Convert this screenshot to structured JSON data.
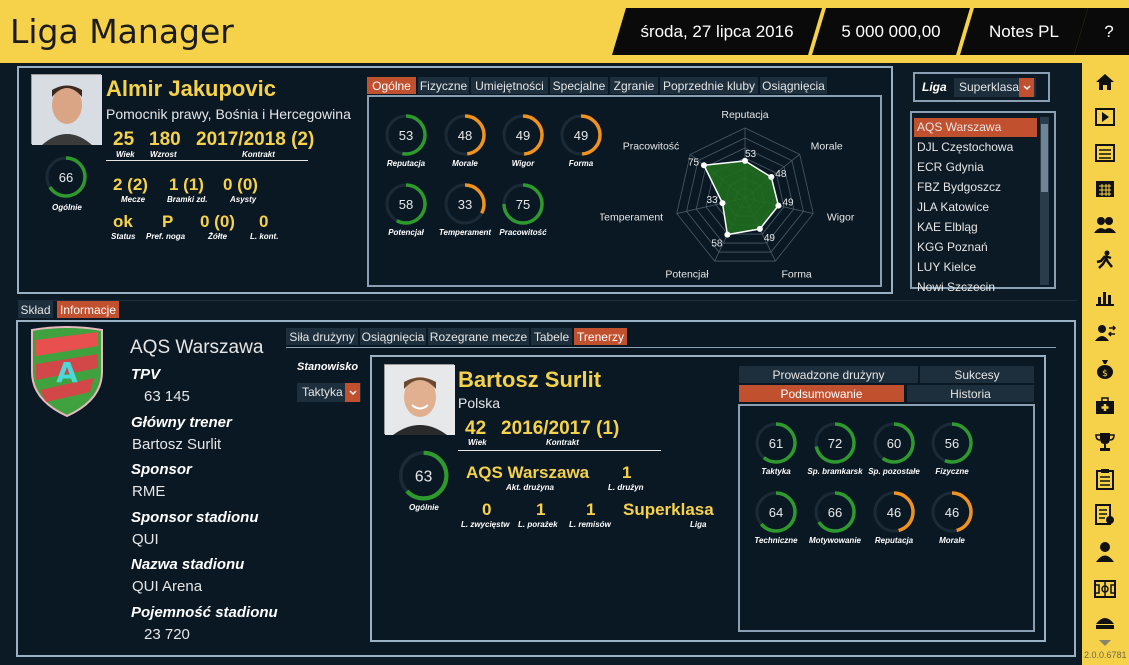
{
  "header": {
    "title": "Liga Manager",
    "date": "środa, 27 lipca 2016",
    "money": "5 000 000,00",
    "notes": "Notes PL",
    "help": "?"
  },
  "player": {
    "name": "Almir Jakupovic",
    "position": "Pomocnik prawy, Bośnia i Hercegowina",
    "age": "25",
    "age_lbl": "Wiek",
    "height": "180",
    "height_lbl": "Wzrost",
    "contract": "2017/2018 (2)",
    "contract_lbl": "Kontrakt",
    "overall": "66",
    "overall_lbl": "Ogólnie",
    "overall_val": 66,
    "matches": "2 (2)",
    "matches_lbl": "Mecze",
    "goals": "1 (1)",
    "goals_lbl": "Bramki zd.",
    "assists": "0 (0)",
    "assists_lbl": "Asysty",
    "status": "ok",
    "status_lbl": "Status",
    "foot": "P",
    "foot_lbl": "Pref. noga",
    "yellow": "0 (0)",
    "yellow_lbl": "Żółte",
    "red": "0",
    "red_lbl": "L. kont."
  },
  "player_tabs": [
    "Ogólne",
    "Fizyczne",
    "Umiejętności",
    "Specjalne",
    "Zgranie",
    "Poprzednie kluby",
    "Osiągnięcia"
  ],
  "player_rings": [
    {
      "label": "Reputacja",
      "value": 53
    },
    {
      "label": "Morale",
      "value": 48
    },
    {
      "label": "Wigor",
      "value": 49
    },
    {
      "label": "Forma",
      "value": 49
    },
    {
      "label": "Potencjał",
      "value": 58
    },
    {
      "label": "Temperament",
      "value": 33
    },
    {
      "label": "Pracowitość",
      "value": 75
    }
  ],
  "radar": {
    "axes": [
      {
        "label": "Reputacja",
        "value": 53
      },
      {
        "label": "Morale",
        "value": 48
      },
      {
        "label": "Wigor",
        "value": 49
      },
      {
        "label": "Forma",
        "value": 49
      },
      {
        "label": "Potencjał",
        "value": 58
      },
      {
        "label": "Temperament",
        "value": 33
      },
      {
        "label": "Pracowitość",
        "value": 75
      }
    ]
  },
  "league": {
    "label": "Liga",
    "value": "Superklasa",
    "clubs": [
      "AQS Warszawa",
      "DJL Częstochowa",
      "ECR Gdynia",
      "FBZ Bydgoszcz",
      "JLA Katowice",
      "KAE Elbląg",
      "KGG Poznań",
      "LUY Kielce",
      "Nowi Szczecin"
    ]
  },
  "section_tabs": [
    "Skład",
    "Informacje"
  ],
  "club": {
    "name": "AQS Warszawa",
    "fields": [
      {
        "label": "TPV",
        "value": "63 145"
      },
      {
        "label": "Główny trener",
        "value": "Bartosz Surlit"
      },
      {
        "label": "Sponsor",
        "value": "RME"
      },
      {
        "label": "Sponsor stadionu",
        "value": "QUI"
      },
      {
        "label": "Nazwa stadionu",
        "value": "QUI Arena"
      },
      {
        "label": "Pojemność stadionu",
        "value": "23 720"
      }
    ],
    "crest_letter": "A"
  },
  "club_tabs": [
    "Siła drużyny",
    "Osiągnięcia",
    "Rozegrane mecze",
    "Tabele",
    "Trenerzy"
  ],
  "coach_filter": {
    "label": "Stanowisko",
    "value": "Taktyka"
  },
  "coach": {
    "name": "Bartosz Surlit",
    "country": "Polska",
    "age": "42",
    "age_lbl": "Wiek",
    "contract": "2016/2017 (1)",
    "contract_lbl": "Kontrakt",
    "overall": "63",
    "overall_val": 63,
    "overall_lbl": "Ogólnie",
    "team": "AQS Warszawa",
    "team_lbl": "Akt. drużyna",
    "teams": "1",
    "teams_lbl": "L. drużyn",
    "wins": "0",
    "wins_lbl": "L. zwycięstw",
    "losses": "1",
    "losses_lbl": "L. porażek",
    "draws": "1",
    "draws_lbl": "L. remisów",
    "league": "Superklasa",
    "league_lbl": "Liga"
  },
  "coach_tabs": [
    "Prowadzone drużyny",
    "Sukcesy",
    "Podsumowanie",
    "Historia"
  ],
  "coach_rings": [
    {
      "label": "Taktyka",
      "value": 61
    },
    {
      "label": "Sp. bramkarsk",
      "value": 72
    },
    {
      "label": "Sp. pozostałe",
      "value": 60
    },
    {
      "label": "Fizyczne",
      "value": 56
    },
    {
      "label": "Techniczne",
      "value": 64
    },
    {
      "label": "Motywowanie",
      "value": 66
    },
    {
      "label": "Reputacja",
      "value": 46
    },
    {
      "label": "Morale",
      "value": 46
    }
  ],
  "version": "2.0.0.6781",
  "colors": {
    "yellow": "#f5d24a",
    "green": "#2e9a2e",
    "orange": "#f0921e",
    "accent": "#c0502e"
  }
}
